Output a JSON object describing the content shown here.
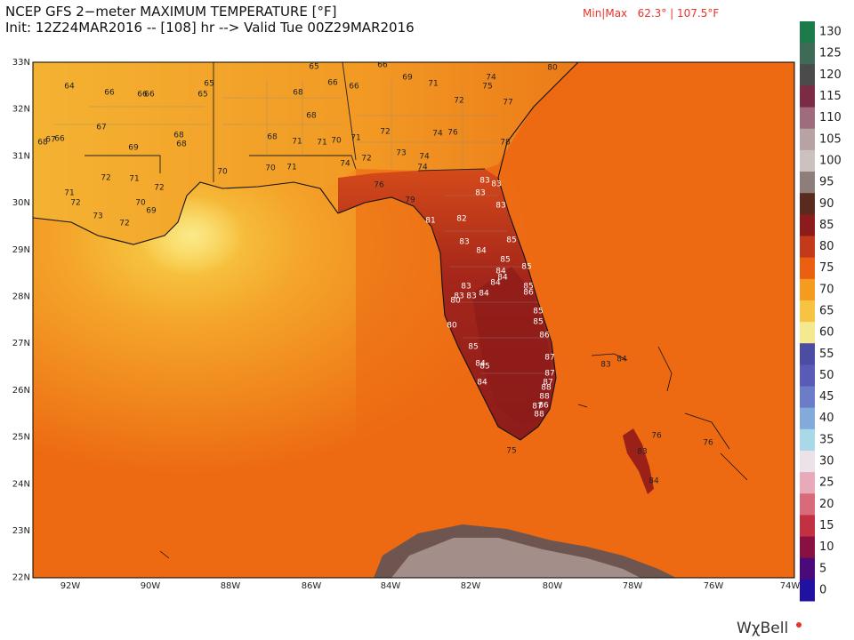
{
  "header": {
    "title": "NCEP GFS 2−meter MAXIMUM TEMPERATURE [°F]",
    "init": "Init: 12Z24MAR2016 -- [108] hr --> Valid Tue 00Z29MAR2016",
    "minmax": "Min|Max   62.3° | 107.5°F"
  },
  "map": {
    "lat_labels": [
      "33N",
      "32N",
      "31N",
      "30N",
      "29N",
      "28N",
      "27N",
      "26N",
      "25N",
      "24N",
      "23N",
      "22N"
    ],
    "lon_labels": [
      "92W",
      "90W",
      "88W",
      "86W",
      "84W",
      "82W",
      "80W",
      "78W",
      "76W",
      "74W"
    ],
    "station_values": [
      64,
      66,
      66,
      66,
      65,
      65,
      65,
      66,
      66,
      66,
      69,
      71,
      75,
      74,
      80,
      67,
      68,
      66,
      67,
      69,
      68,
      68,
      68,
      68,
      68,
      71,
      71,
      70,
      71,
      72,
      73,
      74,
      72,
      76,
      77,
      78,
      72,
      74,
      74,
      74,
      70,
      71,
      70,
      72,
      71,
      72,
      71,
      72,
      73,
      72,
      70,
      69,
      76,
      79,
      81,
      82,
      83,
      83,
      83,
      83,
      83,
      85,
      84,
      85,
      85,
      84,
      84,
      83,
      84,
      84,
      85,
      86,
      80,
      83,
      83,
      85,
      85,
      80,
      86,
      85,
      84,
      85,
      84,
      87,
      87,
      87,
      88,
      88,
      86,
      87,
      88,
      75,
      83,
      84,
      83,
      84,
      76,
      76
    ]
  },
  "colorbar": {
    "ticks": [
      130,
      125,
      120,
      115,
      110,
      105,
      100,
      95,
      90,
      85,
      80,
      75,
      70,
      65,
      60,
      55,
      50,
      45,
      40,
      35,
      30,
      25,
      20,
      15,
      10,
      5,
      0
    ],
    "colors": [
      "#1d7a4b",
      "#3e6a56",
      "#4b4b4b",
      "#7b2c44",
      "#9e6c7c",
      "#b7a3a4",
      "#cbc2bf",
      "#8e7e79",
      "#5b2a1f",
      "#8c1b1b",
      "#c23a1a",
      "#ea5f10",
      "#f59b1f",
      "#f8c243",
      "#f4e98e",
      "#4c4ca2",
      "#5a5ab9",
      "#6b7cc9",
      "#82aada",
      "#a9d9e9",
      "#ebe2ea",
      "#e8a9b9",
      "#d86a79",
      "#c13142",
      "#8b1042",
      "#4b0a79",
      "#2111a1"
    ]
  },
  "logo": "WχBell"
}
